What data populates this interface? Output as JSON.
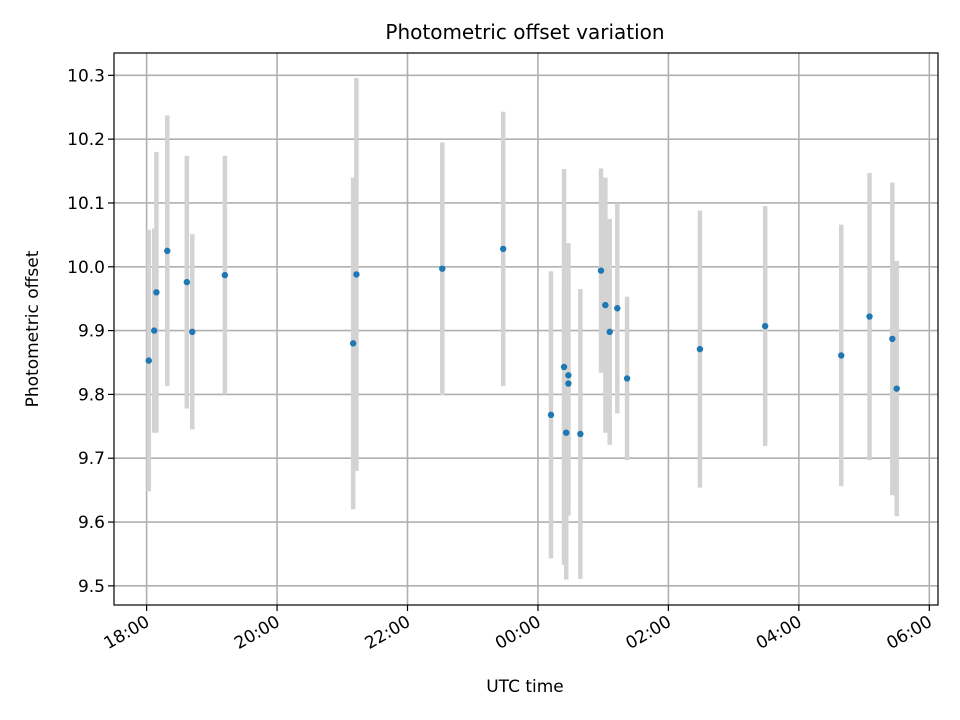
{
  "chart_data": {
    "type": "scatter",
    "title": "Photometric offset variation",
    "xlabel": "UTC time",
    "ylabel": "Photometric offset",
    "x_axis": {
      "kind": "time",
      "range": [
        "17:30",
        "06:08"
      ],
      "ticks": [
        "18:00",
        "20:00",
        "22:00",
        "00:00",
        "02:00",
        "04:00",
        "06:00"
      ]
    },
    "y_axis": {
      "range": [
        9.47,
        10.335
      ],
      "ticks": [
        "9.5",
        "9.6",
        "9.7",
        "9.8",
        "9.9",
        "10.0",
        "10.1",
        "10.2",
        "10.3"
      ]
    },
    "grid": true,
    "colors": {
      "points": "#1f77b4",
      "errorbars": "#d3d3d3",
      "grid": "#b0b0b0"
    },
    "points": [
      {
        "time": "18:02",
        "y": 9.853,
        "err": 0.205
      },
      {
        "time": "18:07",
        "y": 9.9,
        "err": 0.16
      },
      {
        "time": "18:09",
        "y": 9.96,
        "err": 0.22
      },
      {
        "time": "18:19",
        "y": 10.025,
        "err": 0.212
      },
      {
        "time": "18:37",
        "y": 9.976,
        "err": 0.198
      },
      {
        "time": "18:42",
        "y": 9.898,
        "err": 0.153
      },
      {
        "time": "19:12",
        "y": 9.987,
        "err": 0.187
      },
      {
        "time": "21:10",
        "y": 9.88,
        "err": 0.26
      },
      {
        "time": "21:13",
        "y": 9.988,
        "err": 0.308
      },
      {
        "time": "22:32",
        "y": 9.997,
        "err": 0.198
      },
      {
        "time": "23:28",
        "y": 10.028,
        "err": 0.215
      },
      {
        "time": "00:12",
        "y": 9.768,
        "err": 0.225
      },
      {
        "time": "00:24",
        "y": 9.843,
        "err": 0.31
      },
      {
        "time": "00:26",
        "y": 9.74,
        "err": 0.23
      },
      {
        "time": "00:28",
        "y": 9.83,
        "err": 0.207
      },
      {
        "time": "00:28",
        "y": 9.817,
        "err": 0.207
      },
      {
        "time": "00:39",
        "y": 9.738,
        "err": 0.227
      },
      {
        "time": "00:58",
        "y": 9.994,
        "err": 0.16
      },
      {
        "time": "01:02",
        "y": 9.94,
        "err": 0.2
      },
      {
        "time": "01:06",
        "y": 9.898,
        "err": 0.177
      },
      {
        "time": "01:13",
        "y": 9.935,
        "err": 0.165
      },
      {
        "time": "01:22",
        "y": 9.825,
        "err": 0.128
      },
      {
        "time": "02:29",
        "y": 9.871,
        "err": 0.217
      },
      {
        "time": "03:29",
        "y": 9.907,
        "err": 0.188
      },
      {
        "time": "04:39",
        "y": 9.861,
        "err": 0.205
      },
      {
        "time": "05:05",
        "y": 9.922,
        "err": 0.225
      },
      {
        "time": "05:26",
        "y": 9.887,
        "err": 0.245
      },
      {
        "time": "05:30",
        "y": 9.809,
        "err": 0.2
      }
    ]
  }
}
